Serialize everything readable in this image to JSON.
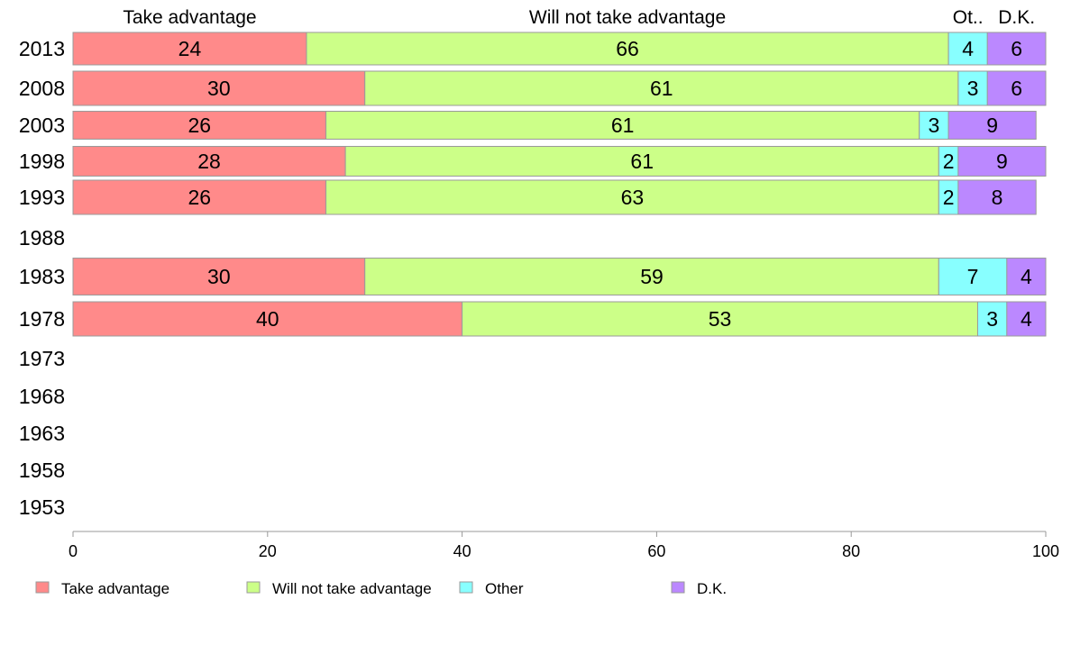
{
  "chart_data": {
    "type": "bar",
    "orientation": "horizontal",
    "stacked": true,
    "categories": [
      "2013",
      "2008",
      "2003",
      "1998",
      "1993",
      "1988",
      "1983",
      "1978",
      "1973",
      "1968",
      "1963",
      "1958",
      "1953"
    ],
    "series": [
      {
        "name": "Take advantage",
        "header": "Take advantage",
        "color": "#ff8a8a",
        "values": [
          24,
          30,
          26,
          28,
          26,
          null,
          30,
          40,
          null,
          null,
          null,
          null,
          null
        ]
      },
      {
        "name": "Will not take advantage",
        "header": "Will not take advantage",
        "color": "#ccff88",
        "values": [
          66,
          61,
          61,
          61,
          63,
          null,
          59,
          53,
          null,
          null,
          null,
          null,
          null
        ]
      },
      {
        "name": "Other",
        "header": "Ot..",
        "color": "#88ffff",
        "values": [
          4,
          3,
          3,
          2,
          2,
          null,
          7,
          3,
          null,
          null,
          null,
          null,
          null
        ]
      },
      {
        "name": "D.K.",
        "header": "D.K.",
        "color": "#bb88ff",
        "values": [
          6,
          6,
          9,
          9,
          8,
          null,
          4,
          4,
          null,
          null,
          null,
          null,
          null
        ]
      }
    ],
    "xlim": [
      0,
      100
    ],
    "xticks": [
      0,
      20,
      40,
      60,
      80,
      100
    ],
    "grid": false,
    "legend_position": "bottom"
  }
}
